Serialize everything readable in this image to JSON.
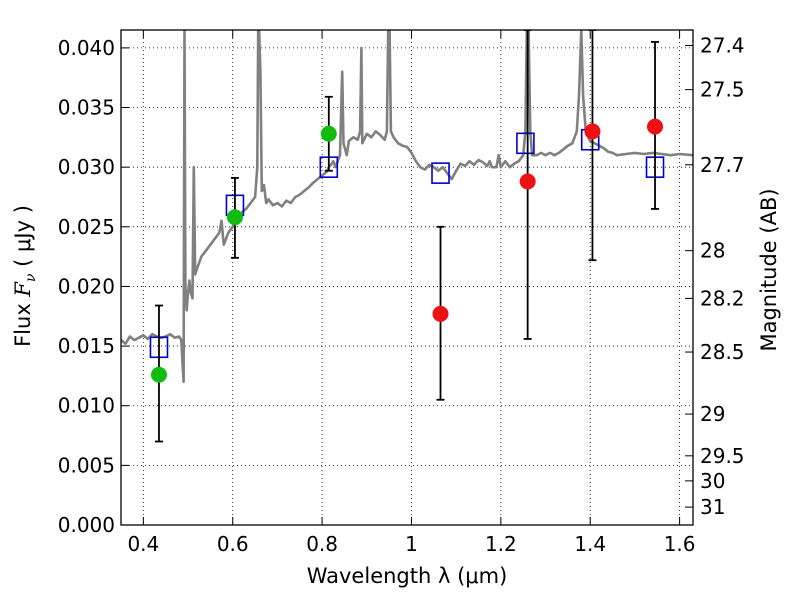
{
  "chart_data": {
    "type": "scatter",
    "xlabel": "Wavelength  λ (μm)",
    "ylabel": "Flux  F_ν  ( μJy )",
    "ylabel_parts": {
      "prefix": "Flux  ",
      "var": "F",
      "sub": "ν",
      "suffix": "  ( μJy )"
    },
    "y2label": "Magnitude (AB)",
    "xlim": [
      0.35,
      1.63
    ],
    "ylim": [
      0.0,
      0.0415
    ],
    "grid": true,
    "x_ticks": [
      {
        "value": 0.4,
        "label": "0.4"
      },
      {
        "value": 0.6,
        "label": "0.6"
      },
      {
        "value": 0.8,
        "label": "0.8"
      },
      {
        "value": 1.0,
        "label": "1"
      },
      {
        "value": 1.2,
        "label": "1.2"
      },
      {
        "value": 1.4,
        "label": "1.4"
      },
      {
        "value": 1.6,
        "label": "1.6"
      }
    ],
    "y_ticks": [
      {
        "value": 0.0,
        "label": "0.000"
      },
      {
        "value": 0.005,
        "label": "0.005"
      },
      {
        "value": 0.01,
        "label": "0.010"
      },
      {
        "value": 0.015,
        "label": "0.015"
      },
      {
        "value": 0.02,
        "label": "0.020"
      },
      {
        "value": 0.025,
        "label": "0.025"
      },
      {
        "value": 0.03,
        "label": "0.030"
      },
      {
        "value": 0.035,
        "label": "0.035"
      },
      {
        "value": 0.04,
        "label": "0.040"
      }
    ],
    "y2_ticks": [
      {
        "flux": 0.0402,
        "label": "27.4"
      },
      {
        "flux": 0.0365,
        "label": "27.5"
      },
      {
        "flux": 0.0302,
        "label": "27.7"
      },
      {
        "flux": 0.023,
        "label": "28"
      },
      {
        "flux": 0.019,
        "label": "28.2"
      },
      {
        "flux": 0.0145,
        "label": "28.5"
      },
      {
        "flux": 0.0093,
        "label": "29"
      },
      {
        "flux": 0.0058,
        "label": "29.5"
      },
      {
        "flux": 0.0037,
        "label": "30"
      },
      {
        "flux": 0.0015,
        "label": "31"
      }
    ],
    "model_spectrum": {
      "color": "#808080",
      "points": [
        [
          0.35,
          0.0155
        ],
        [
          0.36,
          0.0152
        ],
        [
          0.37,
          0.0158
        ],
        [
          0.38,
          0.0155
        ],
        [
          0.39,
          0.0157
        ],
        [
          0.4,
          0.0159
        ],
        [
          0.41,
          0.0156
        ],
        [
          0.42,
          0.016
        ],
        [
          0.43,
          0.0158
        ],
        [
          0.44,
          0.0157
        ],
        [
          0.45,
          0.0158
        ],
        [
          0.46,
          0.016
        ],
        [
          0.47,
          0.0157
        ],
        [
          0.48,
          0.0158
        ],
        [
          0.485,
          0.0155
        ],
        [
          0.49,
          0.012
        ],
        [
          0.492,
          0.0415
        ],
        [
          0.494,
          0.02
        ],
        [
          0.497,
          0.018
        ],
        [
          0.5,
          0.0195
        ],
        [
          0.503,
          0.0205
        ],
        [
          0.506,
          0.0195
        ],
        [
          0.51,
          0.019
        ],
        [
          0.513,
          0.03
        ],
        [
          0.516,
          0.021
        ],
        [
          0.52,
          0.0215
        ],
        [
          0.53,
          0.0225
        ],
        [
          0.54,
          0.023
        ],
        [
          0.55,
          0.0235
        ],
        [
          0.56,
          0.024
        ],
        [
          0.57,
          0.0245
        ],
        [
          0.575,
          0.0255
        ],
        [
          0.58,
          0.0235
        ],
        [
          0.59,
          0.0245
        ],
        [
          0.6,
          0.025
        ],
        [
          0.61,
          0.0258
        ],
        [
          0.615,
          0.026
        ],
        [
          0.62,
          0.0262
        ],
        [
          0.63,
          0.0265
        ],
        [
          0.64,
          0.027
        ],
        [
          0.65,
          0.0275
        ],
        [
          0.655,
          0.03
        ],
        [
          0.657,
          0.0415
        ],
        [
          0.659,
          0.0415
        ],
        [
          0.662,
          0.038
        ],
        [
          0.665,
          0.028
        ],
        [
          0.67,
          0.0285
        ],
        [
          0.675,
          0.027
        ],
        [
          0.68,
          0.0273
        ],
        [
          0.69,
          0.0268
        ],
        [
          0.7,
          0.027
        ],
        [
          0.71,
          0.0267
        ],
        [
          0.72,
          0.0272
        ],
        [
          0.73,
          0.027
        ],
        [
          0.74,
          0.0275
        ],
        [
          0.75,
          0.0277
        ],
        [
          0.76,
          0.028
        ],
        [
          0.77,
          0.0283
        ],
        [
          0.78,
          0.0287
        ],
        [
          0.79,
          0.029
        ],
        [
          0.8,
          0.0293
        ],
        [
          0.81,
          0.0296
        ],
        [
          0.815,
          0.03
        ],
        [
          0.82,
          0.0302
        ],
        [
          0.825,
          0.0305
        ],
        [
          0.83,
          0.03
        ],
        [
          0.84,
          0.031
        ],
        [
          0.845,
          0.038
        ],
        [
          0.848,
          0.032
        ],
        [
          0.855,
          0.031
        ],
        [
          0.86,
          0.0322
        ],
        [
          0.87,
          0.0325
        ],
        [
          0.88,
          0.0323
        ],
        [
          0.885,
          0.033
        ],
        [
          0.888,
          0.04
        ],
        [
          0.89,
          0.032
        ],
        [
          0.9,
          0.0328
        ],
        [
          0.91,
          0.0325
        ],
        [
          0.92,
          0.033
        ],
        [
          0.93,
          0.0327
        ],
        [
          0.94,
          0.0323
        ],
        [
          0.945,
          0.033
        ],
        [
          0.948,
          0.0415
        ],
        [
          0.951,
          0.0415
        ],
        [
          0.954,
          0.033
        ],
        [
          0.96,
          0.0325
        ],
        [
          0.97,
          0.032
        ],
        [
          0.98,
          0.0318
        ],
        [
          0.99,
          0.0317
        ],
        [
          1.0,
          0.0312
        ],
        [
          1.01,
          0.0305
        ],
        [
          1.02,
          0.03
        ],
        [
          1.03,
          0.0298
        ],
        [
          1.04,
          0.0302
        ],
        [
          1.05,
          0.03
        ],
        [
          1.06,
          0.0297
        ],
        [
          1.07,
          0.03
        ],
        [
          1.08,
          0.0295
        ],
        [
          1.09,
          0.029
        ],
        [
          1.1,
          0.0297
        ],
        [
          1.11,
          0.0303
        ],
        [
          1.12,
          0.0301
        ],
        [
          1.13,
          0.0305
        ],
        [
          1.14,
          0.0302
        ],
        [
          1.15,
          0.0306
        ],
        [
          1.16,
          0.0304
        ],
        [
          1.17,
          0.0301
        ],
        [
          1.175,
          0.0305
        ],
        [
          1.18,
          0.03
        ],
        [
          1.19,
          0.03
        ],
        [
          1.195,
          0.031
        ],
        [
          1.2,
          0.03
        ],
        [
          1.21,
          0.0305
        ],
        [
          1.22,
          0.03
        ],
        [
          1.23,
          0.0303
        ],
        [
          1.24,
          0.0305
        ],
        [
          1.25,
          0.031
        ],
        [
          1.255,
          0.033
        ],
        [
          1.258,
          0.0415
        ],
        [
          1.262,
          0.0415
        ],
        [
          1.266,
          0.033
        ],
        [
          1.27,
          0.031
        ],
        [
          1.28,
          0.031
        ],
        [
          1.29,
          0.0312
        ],
        [
          1.3,
          0.031
        ],
        [
          1.31,
          0.0312
        ],
        [
          1.32,
          0.031
        ],
        [
          1.33,
          0.0312
        ],
        [
          1.34,
          0.0315
        ],
        [
          1.35,
          0.0318
        ],
        [
          1.36,
          0.032
        ],
        [
          1.37,
          0.033
        ],
        [
          1.375,
          0.036
        ],
        [
          1.38,
          0.0415
        ],
        [
          1.384,
          0.036
        ],
        [
          1.39,
          0.033
        ],
        [
          1.4,
          0.0322
        ],
        [
          1.41,
          0.032
        ],
        [
          1.42,
          0.0318
        ],
        [
          1.43,
          0.0316
        ],
        [
          1.44,
          0.0313
        ],
        [
          1.45,
          0.0312
        ],
        [
          1.46,
          0.031
        ],
        [
          1.48,
          0.0311
        ],
        [
          1.5,
          0.0312
        ],
        [
          1.52,
          0.0311
        ],
        [
          1.54,
          0.0312
        ],
        [
          1.56,
          0.0311
        ],
        [
          1.58,
          0.031
        ],
        [
          1.6,
          0.0311
        ],
        [
          1.63,
          0.031
        ]
      ]
    },
    "synthetic_photometry": {
      "marker": "open-square",
      "color": "#0000cc",
      "points": [
        {
          "x": 0.435,
          "y": 0.0149
        },
        {
          "x": 0.605,
          "y": 0.0268
        },
        {
          "x": 0.815,
          "y": 0.03
        },
        {
          "x": 1.065,
          "y": 0.0295
        },
        {
          "x": 1.255,
          "y": 0.032
        },
        {
          "x": 1.4,
          "y": 0.0323
        },
        {
          "x": 1.545,
          "y": 0.03
        }
      ]
    },
    "observed_photometry": [
      {
        "x": 0.435,
        "y": 0.0126,
        "yerr_low": 0.007,
        "yerr_high": 0.0184,
        "color": "#11bb11"
      },
      {
        "x": 0.605,
        "y": 0.0258,
        "yerr_low": 0.0224,
        "yerr_high": 0.0291,
        "color": "#11bb11"
      },
      {
        "x": 0.815,
        "y": 0.0328,
        "yerr_low": 0.0297,
        "yerr_high": 0.0359,
        "color": "#11bb11"
      },
      {
        "x": 1.065,
        "y": 0.0177,
        "yerr_low": 0.0105,
        "yerr_high": 0.025,
        "color": "#ee1111"
      },
      {
        "x": 1.26,
        "y": 0.0288,
        "yerr_low": 0.0156,
        "yerr_high": 0.0415,
        "color": "#ee1111"
      },
      {
        "x": 1.405,
        "y": 0.033,
        "yerr_low": 0.0222,
        "yerr_high": 0.0415,
        "color": "#ee1111"
      },
      {
        "x": 1.545,
        "y": 0.0334,
        "yerr_low": 0.0265,
        "yerr_high": 0.0405,
        "color": "#ee1111"
      }
    ]
  }
}
